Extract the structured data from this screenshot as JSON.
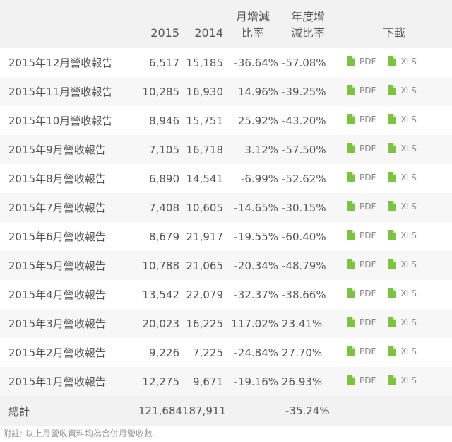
{
  "header": {
    "col_2015": "2015",
    "col_2014": "2014",
    "col_mom_line1": "月增減",
    "col_mom_line2": "比率",
    "col_yoy_line1": "年度增",
    "col_yoy_line2": "減比率",
    "col_download": "下載"
  },
  "download_labels": {
    "pdf": "PDF",
    "xls": "XLS"
  },
  "rows": [
    {
      "name": "2015年12月營收報告",
      "y2015": "6,517",
      "y2014": "15,185",
      "mom": "-36.64%",
      "yoy": "-57.08%"
    },
    {
      "name": "2015年11月營收報告",
      "y2015": "10,285",
      "y2014": "16,930",
      "mom": "14.96%",
      "yoy": "-39.25%"
    },
    {
      "name": "2015年10月營收報告",
      "y2015": "8,946",
      "y2014": "15,751",
      "mom": "25.92%",
      "yoy": "-43.20%"
    },
    {
      "name": "2015年9月營收報告",
      "y2015": "7,105",
      "y2014": "16,718",
      "mom": "3.12%",
      "yoy": "-57.50%"
    },
    {
      "name": "2015年8月營收報告",
      "y2015": "6,890",
      "y2014": "14,541",
      "mom": "-6.99%",
      "yoy": "-52.62%"
    },
    {
      "name": "2015年7月營收報告",
      "y2015": "7,408",
      "y2014": "10,605",
      "mom": "-14.65%",
      "yoy": "-30.15%"
    },
    {
      "name": "2015年6月營收報告",
      "y2015": "8,679",
      "y2014": "21,917",
      "mom": "-19.55%",
      "yoy": "-60.40%"
    },
    {
      "name": "2015年5月營收報告",
      "y2015": "10,788",
      "y2014": "21,065",
      "mom": "-20.34%",
      "yoy": "-48.79%"
    },
    {
      "name": "2015年4月營收報告",
      "y2015": "13,542",
      "y2014": "22,079",
      "mom": "-32.37%",
      "yoy": "-38.66%"
    },
    {
      "name": "2015年3月營收報告",
      "y2015": "20,023",
      "y2014": "16,225",
      "mom": "117.02%",
      "yoy": "23.41%"
    },
    {
      "name": "2015年2月營收報告",
      "y2015": "9,226",
      "y2014": "7,225",
      "mom": "-24.84%",
      "yoy": "27.70%"
    },
    {
      "name": "2015年1月營收報告",
      "y2015": "12,275",
      "y2014": "9,671",
      "mom": "-19.16%",
      "yoy": "26.93%"
    }
  ],
  "total": {
    "label": "總計",
    "y2015": "121,684",
    "y2014": "187,911",
    "mom": "",
    "yoy": "-35.24%"
  },
  "footnote": "附註: 以上月營收資料均為合併月營收數.",
  "colors": {
    "header_bg": "#f2f2f2",
    "stripe_bg": "#f7f7f7",
    "icon_green": "#7dc242",
    "text": "#555555"
  },
  "icons": {
    "file": "file-icon"
  }
}
